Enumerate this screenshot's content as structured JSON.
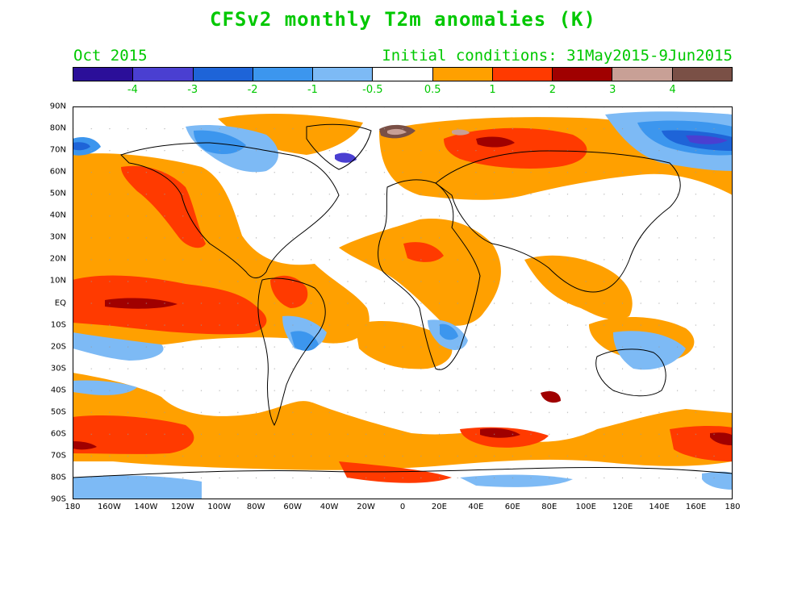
{
  "title": "CFSv2 monthly T2m anomalies (K)",
  "month_label": "Oct 2015",
  "initial_conditions": "Initial conditions: 31May2015-9Jun2015",
  "colorbar": {
    "colors": [
      "#2b0f99",
      "#4a3fd1",
      "#1e64d8",
      "#3c96ee",
      "#7dbaf5",
      "#ffffff",
      "#ffa000",
      "#ff3a00",
      "#a00000",
      "#c8a096",
      "#7a5046"
    ],
    "labels": [
      "-4",
      "-3",
      "-2",
      "-1",
      "-0.5",
      "0.5",
      "1",
      "2",
      "3",
      "4"
    ]
  },
  "axes": {
    "lat_labels": [
      "90N",
      "80N",
      "70N",
      "60N",
      "50N",
      "40N",
      "30N",
      "20N",
      "10N",
      "EQ",
      "10S",
      "20S",
      "30S",
      "40S",
      "50S",
      "60S",
      "70S",
      "80S",
      "90S"
    ],
    "lon_labels": [
      "180",
      "160W",
      "140W",
      "120W",
      "100W",
      "80W",
      "60W",
      "40W",
      "20W",
      "0",
      "20E",
      "40E",
      "60E",
      "80E",
      "100E",
      "120E",
      "140E",
      "160E",
      "180"
    ]
  }
}
